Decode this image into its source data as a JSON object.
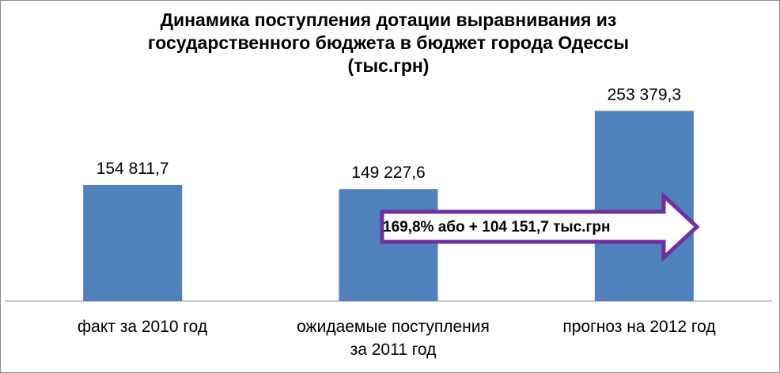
{
  "chart_data": {
    "type": "bar",
    "title_lines": [
      "Динамика поступления дотации выравнивания из",
      "государственного бюджета в бюджет города Одессы",
      "(тыс.грн)"
    ],
    "categories": [
      [
        "факт за 2010 год"
      ],
      [
        "ожидаемые поступления",
        "за 2011 год"
      ],
      [
        "прогноз на 2012 год"
      ]
    ],
    "values": [
      154811.7,
      149227.6,
      253379.3
    ],
    "data_labels": [
      "154 811,7",
      "149 227,6",
      "253 379,3"
    ],
    "ylim": [
      0,
      400000
    ],
    "grid": false,
    "bar_color": "#4f81bd",
    "annotation": {
      "text": "169,8% або + 104 151,7 тыс.грн",
      "fill": "#ffffff",
      "stroke": "#7030a0"
    }
  }
}
